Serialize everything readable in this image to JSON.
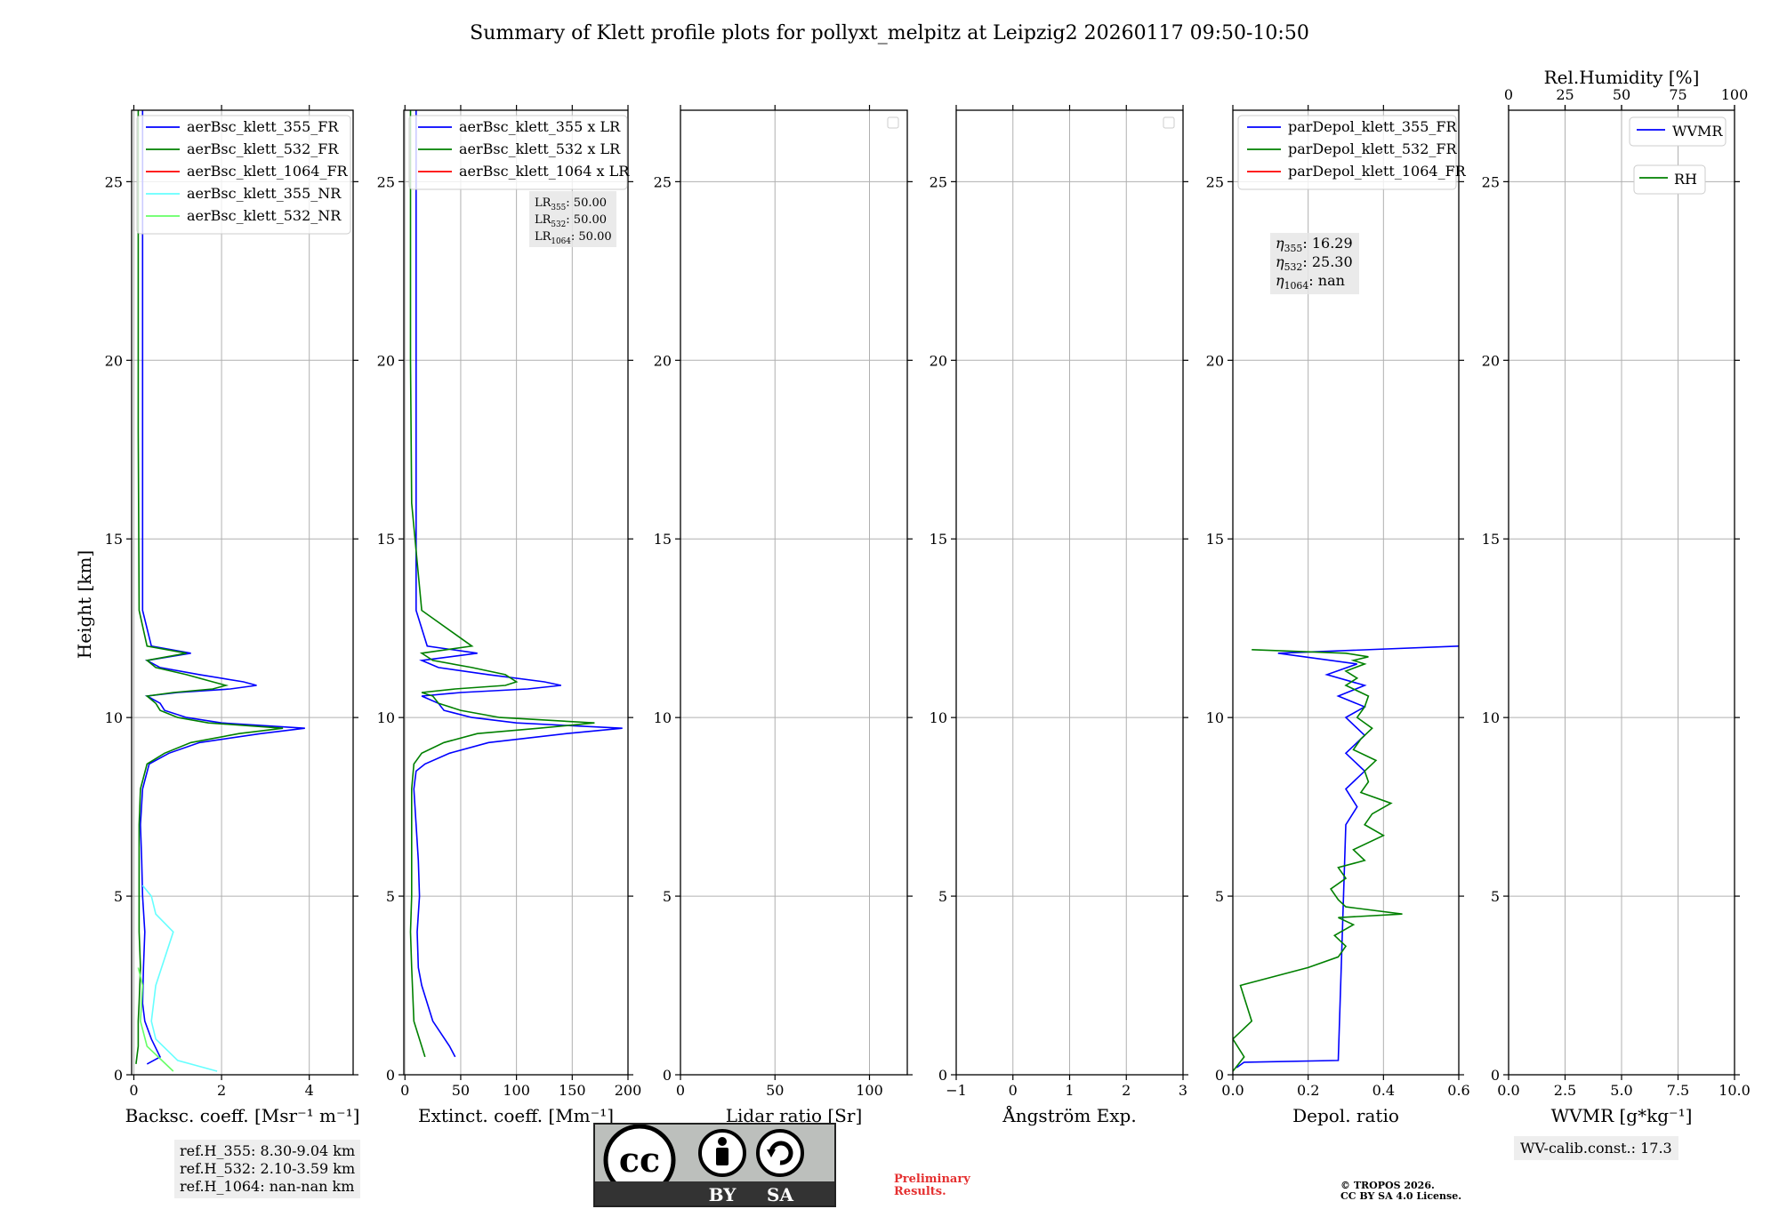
{
  "chart_data": {
    "title": "Summary of Klett profile plots for pollyxt_melpitz at Leipzig2 20260117 09:50-10:50",
    "shared_ylabel": "Height [km]",
    "ylim": [
      0,
      27
    ],
    "yticks": [
      0,
      5,
      10,
      15,
      20,
      25
    ],
    "panels": [
      {
        "id": "bsc",
        "type": "line",
        "xlabel": "Backsc. coeff. [Msr⁻¹ m⁻¹]",
        "xlim": [
          -0.05,
          5
        ],
        "xticks": [
          0,
          2,
          4
        ],
        "xticklabels": [
          "0",
          "2",
          "4"
        ],
        "legend": [
          "aerBsc_klett_355_FR",
          "aerBsc_klett_532_FR",
          "aerBsc_klett_1064_FR",
          "aerBsc_klett_355_NR",
          "aerBsc_klett_532_NR"
        ],
        "legend_colors": [
          "#0000ff",
          "#008000",
          "#ff0000",
          "#66ffff",
          "#66ff66"
        ],
        "series": [
          {
            "name": "aerBsc_klett_355_FR",
            "color": "#0000ff",
            "x": [
              0.3,
              0.6,
              0.4,
              0.25,
              0.2,
              0.22,
              0.25,
              0.2,
              0.18,
              0.15,
              0.2,
              0.35,
              0.8,
              1.5,
              2.9,
              3.9,
              2.0,
              1.2,
              0.7,
              0.6,
              0.3,
              1.0,
              2.2,
              2.8,
              2.5,
              1.5,
              0.6,
              0.3,
              1.3,
              0.4,
              0.2,
              0.2,
              0.2,
              0.2
            ],
            "y": [
              0.3,
              0.5,
              1.0,
              1.5,
              2.0,
              3.0,
              4.0,
              5.0,
              6.0,
              7.0,
              8.0,
              8.7,
              9.0,
              9.3,
              9.55,
              9.7,
              9.85,
              10.0,
              10.2,
              10.4,
              10.6,
              10.7,
              10.8,
              10.9,
              11.0,
              11.2,
              11.4,
              11.6,
              11.8,
              12.0,
              13.0,
              17.0,
              22.0,
              27.0
            ]
          },
          {
            "name": "aerBsc_klett_532_FR",
            "color": "#008000",
            "x": [
              0.05,
              0.1,
              0.1,
              0.12,
              0.15,
              0.12,
              0.12,
              0.12,
              0.12,
              0.15,
              0.3,
              0.7,
              1.3,
              2.4,
              3.4,
              1.7,
              1.0,
              0.6,
              0.5,
              0.3,
              0.9,
              1.8,
              2.1,
              1.8,
              1.2,
              0.5,
              0.3,
              1.2,
              0.3,
              0.12,
              0.1,
              0.1
            ],
            "y": [
              0.3,
              0.8,
              1.5,
              2.0,
              3.0,
              4.0,
              5.0,
              6.0,
              7.0,
              8.0,
              8.7,
              9.0,
              9.3,
              9.55,
              9.7,
              9.85,
              10.0,
              10.2,
              10.4,
              10.6,
              10.7,
              10.8,
              10.9,
              11.0,
              11.2,
              11.4,
              11.6,
              11.8,
              12.0,
              13.0,
              18.0,
              27.0
            ]
          },
          {
            "name": "aerBsc_klett_355_NR",
            "color": "#66ffff",
            "x": [
              1.9,
              1.0,
              0.5,
              0.4,
              0.5,
              0.9,
              0.5,
              0.4,
              0.2
            ],
            "y": [
              0.1,
              0.4,
              1.0,
              1.5,
              2.5,
              4.0,
              4.5,
              5.0,
              5.3
            ]
          },
          {
            "name": "aerBsc_klett_532_NR",
            "color": "#66ff66",
            "x": [
              0.9,
              0.3,
              0.15,
              0.2,
              0.1
            ],
            "y": [
              0.1,
              0.8,
              1.5,
              2.5,
              3.0
            ]
          }
        ]
      },
      {
        "id": "ext",
        "type": "line",
        "xlabel": "Extinct. coeff. [Mm⁻¹]",
        "xlim": [
          -1,
          200
        ],
        "xticks": [
          0,
          50,
          100,
          150,
          200
        ],
        "xticklabels": [
          "0",
          "50",
          "100",
          "150",
          "200"
        ],
        "legend": [
          "aerBsc_klett_355 x LR",
          "aerBsc_klett_532 x LR",
          "aerBsc_klett_1064 x LR"
        ],
        "legend_colors": [
          "#0000ff",
          "#008000",
          "#ff0000"
        ],
        "annotation": [
          "LR355: 50.00",
          "LR532: 50.00",
          "LR1064: 50.00"
        ],
        "series": [
          {
            "name": "aerBsc_klett_355 x LR",
            "color": "#0000ff",
            "x": [
              45,
              40,
              25,
              15,
              12,
              11,
              13,
              12,
              10,
              8,
              10,
              18,
              40,
              75,
              145,
              195,
              100,
              60,
              35,
              30,
              15,
              50,
              110,
              140,
              125,
              75,
              30,
              15,
              65,
              20,
              10,
              10,
              10,
              10
            ],
            "y": [
              0.5,
              0.8,
              1.5,
              2.5,
              3.0,
              4.0,
              5.0,
              6.0,
              7.0,
              8.0,
              8.5,
              8.7,
              9.0,
              9.3,
              9.55,
              9.7,
              9.85,
              10.0,
              10.2,
              10.4,
              10.6,
              10.7,
              10.8,
              10.9,
              11.0,
              11.2,
              11.4,
              11.6,
              11.8,
              12.0,
              13.0,
              17.0,
              22.0,
              27.0
            ]
          },
          {
            "name": "aerBsc_klett_532 x LR",
            "color": "#008000",
            "x": [
              18,
              8,
              6,
              5,
              6,
              6,
              6,
              6,
              8,
              15,
              35,
              65,
              120,
              170,
              85,
              50,
              30,
              25,
              15,
              45,
              90,
              100,
              90,
              60,
              25,
              15,
              60,
              15,
              6,
              5,
              5
            ],
            "y": [
              0.5,
              1.5,
              3.0,
              4.0,
              5.0,
              6.0,
              7.0,
              8.0,
              8.7,
              9.0,
              9.3,
              9.55,
              9.7,
              9.85,
              10.0,
              10.2,
              10.4,
              10.6,
              10.7,
              10.8,
              10.9,
              11.0,
              11.2,
              11.4,
              11.6,
              11.8,
              12.0,
              13.0,
              16.0,
              20.0,
              27.0
            ]
          }
        ]
      },
      {
        "id": "lr",
        "type": "line",
        "xlabel": "Lidar ratio [Sr]",
        "xlim": [
          0,
          120
        ],
        "xticks": [
          0,
          50,
          100
        ],
        "xticklabels": [
          "0",
          "50",
          "100"
        ],
        "series": []
      },
      {
        "id": "ang",
        "type": "line",
        "xlabel": "Ångström Exp.",
        "xlim": [
          -1,
          3
        ],
        "xticks": [
          -1,
          0,
          1,
          2,
          3
        ],
        "xticklabels": [
          "−1",
          "0",
          "1",
          "2",
          "3"
        ],
        "series": []
      },
      {
        "id": "depol",
        "type": "line",
        "xlabel": "Depol. ratio",
        "xlim": [
          0,
          0.6
        ],
        "xticks": [
          0,
          0.2,
          0.4,
          0.6
        ],
        "xticklabels": [
          "0.0",
          "0.2",
          "0.4",
          "0.6"
        ],
        "legend": [
          "parDepol_klett_355_FR",
          "parDepol_klett_532_FR",
          "parDepol_klett_1064_FR"
        ],
        "legend_colors": [
          "#0000ff",
          "#008000",
          "#ff0000"
        ],
        "annotation": [
          "η355: 16.29",
          "η532: 25.30",
          "η1064: nan"
        ],
        "series": [
          {
            "name": "parDepol_klett_355_FR",
            "color": "#0000ff",
            "x": [
              0.01,
              0.03,
              0.28,
              0.3,
              0.33,
              0.3,
              0.35,
              0.3,
              0.35,
              0.3,
              0.35,
              0.28,
              0.35,
              0.25,
              0.33,
              0.12,
              0.6
            ],
            "y": [
              0.2,
              0.35,
              0.4,
              7.0,
              7.5,
              8.0,
              8.5,
              9.0,
              9.5,
              10.0,
              10.3,
              10.6,
              10.9,
              11.2,
              11.5,
              11.8,
              12.0
            ]
          },
          {
            "name": "parDepol_klett_532_FR",
            "color": "#008000",
            "x": [
              0.0,
              0.03,
              0.0,
              0.05,
              0.02,
              0.2,
              0.28,
              0.3,
              0.27,
              0.32,
              0.28,
              0.45,
              0.3,
              0.28,
              0.26,
              0.3,
              0.28,
              0.35,
              0.32,
              0.4,
              0.35,
              0.37,
              0.42,
              0.34,
              0.36,
              0.35,
              0.38,
              0.32,
              0.34,
              0.37,
              0.33,
              0.35,
              0.36,
              0.3,
              0.33,
              0.3,
              0.35,
              0.32,
              0.36,
              0.3,
              0.05
            ],
            "y": [
              0.1,
              0.5,
              1.0,
              1.5,
              2.5,
              3.0,
              3.3,
              3.6,
              3.9,
              4.2,
              4.4,
              4.5,
              4.7,
              4.9,
              5.2,
              5.5,
              5.8,
              6.0,
              6.3,
              6.7,
              7.0,
              7.3,
              7.6,
              7.9,
              8.2,
              8.5,
              8.8,
              9.1,
              9.4,
              9.7,
              10.0,
              10.3,
              10.6,
              10.9,
              11.1,
              11.3,
              11.5,
              11.6,
              11.7,
              11.8,
              11.9
            ]
          }
        ]
      },
      {
        "id": "wv",
        "type": "line",
        "xlabel": "WVMR [g*kg⁻¹]",
        "xlim": [
          0,
          10
        ],
        "xticks": [
          0,
          2.5,
          5,
          7.5,
          10
        ],
        "xticklabels": [
          "0.0",
          "2.5",
          "5.0",
          "7.5",
          "10.0"
        ],
        "top_xlabel": "Rel.Humidity [%]",
        "top_xlim": [
          0,
          100
        ],
        "top_xticks": [
          "0",
          "25",
          "50",
          "75",
          "100"
        ],
        "legend": [
          "WVMR",
          "RH"
        ],
        "legend_colors": [
          "#0000ff",
          "#008000"
        ],
        "series": []
      }
    ],
    "ref_heights": [
      "ref.H_355: 8.30-9.04 km",
      "ref.H_532: 2.10-3.59 km",
      "ref.H_1064: nan-nan km"
    ],
    "wv_calib": "WV-calib.const.: 17.3"
  },
  "footer": {
    "license_badge": {
      "cc": "cc",
      "by": "BY",
      "sa": "SA"
    },
    "preliminary": [
      "Preliminary",
      "Results."
    ],
    "copyright": [
      "© TROPOS 2026.",
      "CC BY SA 4.0 License."
    ]
  },
  "colors": {
    "blue": "#0000ff",
    "green": "#008000",
    "red": "#ff0000",
    "cyan": "#66ffff",
    "lightgreen": "#66ff66",
    "prelim": "#e53030"
  }
}
